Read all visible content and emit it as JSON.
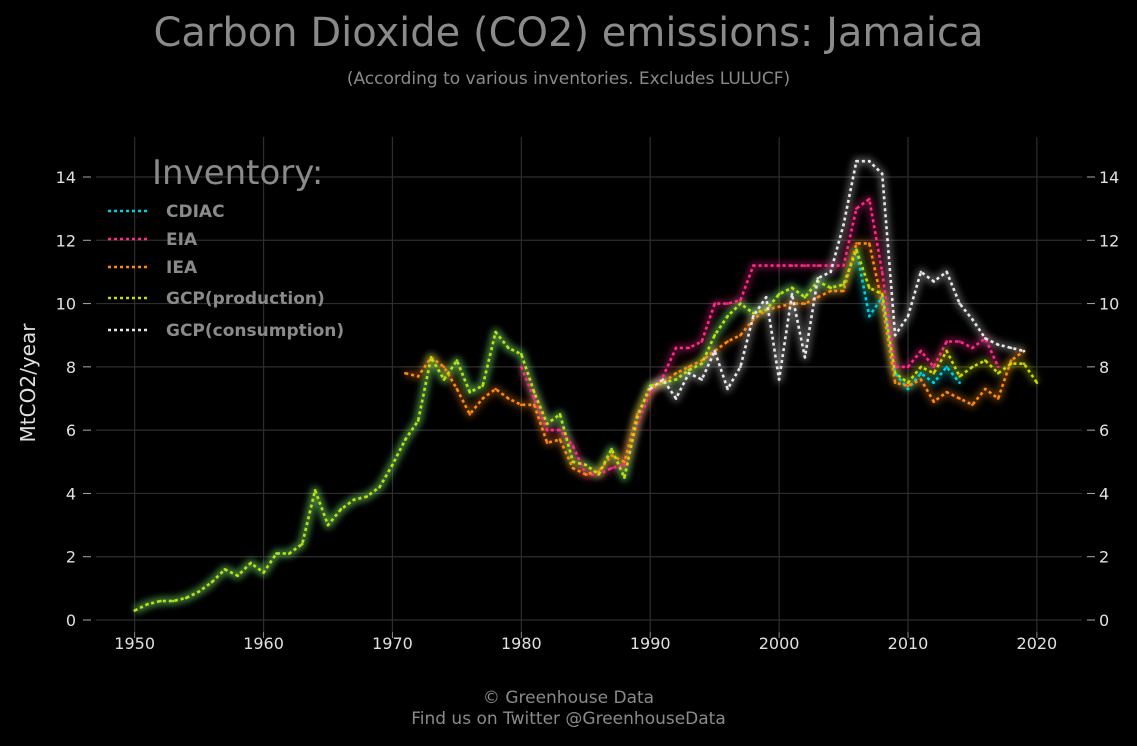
{
  "header": {
    "title": "Carbon Dioxide (CO2) emissions: Jamaica",
    "subtitle": "(According to various inventories. Excludes LULUCF)"
  },
  "footer": {
    "copyright": "© Greenhouse Data",
    "twitter": "Find us on Twitter @GreenhouseData"
  },
  "colors": {
    "background": "#000000",
    "grid": "#2e2e2e",
    "text": "#8a8a8a",
    "tick_text": "#e0e0e0"
  },
  "chart_data": {
    "type": "line",
    "title": "Carbon Dioxide (CO2) emissions: Jamaica",
    "subtitle": "(According to various inventories. Excludes LULUCF)",
    "xlabel": "",
    "ylabel": "MtCO2/year",
    "xlim": [
      1947,
      2023.5
    ],
    "ylim": [
      0,
      15.3
    ],
    "xticks": [
      1950,
      1960,
      1970,
      1980,
      1990,
      2000,
      2010,
      2020
    ],
    "yticks": [
      0,
      2,
      4,
      6,
      8,
      10,
      12,
      14
    ],
    "grid": true,
    "legend_title": "Inventory:",
    "legend_position": "top-left",
    "series": [
      {
        "name": "CDIAC",
        "color": "#00d0e0",
        "x": [
          1950,
          1951,
          1952,
          1953,
          1954,
          1955,
          1956,
          1957,
          1958,
          1959,
          1960,
          1961,
          1962,
          1963,
          1964,
          1965,
          1966,
          1967,
          1968,
          1969,
          1970,
          1971,
          1972,
          1973,
          1974,
          1975,
          1976,
          1977,
          1978,
          1979,
          1980,
          1981,
          1982,
          1983,
          1984,
          1985,
          1986,
          1987,
          1988,
          1989,
          1990,
          1991,
          1992,
          1993,
          1994,
          1995,
          1996,
          1997,
          1998,
          1999,
          2000,
          2001,
          2002,
          2003,
          2004,
          2005,
          2006,
          2007,
          2008,
          2009,
          2010,
          2011,
          2012,
          2013,
          2014
        ],
        "values": [
          0.3,
          0.5,
          0.6,
          0.6,
          0.7,
          0.9,
          1.2,
          1.6,
          1.4,
          1.8,
          1.5,
          2.1,
          2.1,
          2.4,
          4.1,
          3.0,
          3.5,
          3.8,
          3.9,
          4.2,
          4.9,
          5.7,
          6.3,
          8.3,
          7.6,
          8.2,
          7.2,
          7.4,
          9.1,
          8.6,
          8.4,
          7.2,
          6.2,
          6.5,
          5.0,
          4.9,
          4.6,
          5.4,
          4.5,
          6.4,
          7.4,
          7.5,
          7.6,
          7.9,
          8.1,
          9.0,
          9.6,
          10.0,
          9.7,
          9.8,
          10.3,
          10.5,
          10.2,
          10.7,
          10.5,
          10.6,
          11.7,
          9.6,
          10.2,
          7.8,
          7.3,
          7.8,
          7.5,
          8.0,
          7.5
        ]
      },
      {
        "name": "EIA",
        "color": "#ff2a8a",
        "x": [
          1980,
          1981,
          1982,
          1983,
          1984,
          1985,
          1986,
          1987,
          1988,
          1989,
          1990,
          1991,
          1992,
          1993,
          1994,
          1995,
          1996,
          1997,
          1998,
          1999,
          2000,
          2001,
          2002,
          2003,
          2004,
          2005,
          2006,
          2007,
          2008,
          2009,
          2010,
          2011,
          2012,
          2013,
          2014,
          2015,
          2016,
          2017
        ],
        "values": [
          8.0,
          7.0,
          6.0,
          6.0,
          5.5,
          4.6,
          4.6,
          4.8,
          4.9,
          6.2,
          7.2,
          7.7,
          8.6,
          8.6,
          8.8,
          10.0,
          10.0,
          10.1,
          11.2,
          11.2,
          11.2,
          11.2,
          11.2,
          11.2,
          11.2,
          11.2,
          13.0,
          13.3,
          11.0,
          8.0,
          8.0,
          8.5,
          8.0,
          8.8,
          8.8,
          8.6,
          8.9,
          8.0
        ]
      },
      {
        "name": "IEA",
        "color": "#ff8a10",
        "x": [
          1971,
          1972,
          1973,
          1974,
          1975,
          1976,
          1977,
          1978,
          1979,
          1980,
          1981,
          1982,
          1983,
          1984,
          1985,
          1986,
          1987,
          1988,
          1989,
          1990,
          1991,
          1992,
          1993,
          1994,
          1995,
          1996,
          1997,
          1998,
          1999,
          2000,
          2001,
          2002,
          2003,
          2004,
          2005,
          2006,
          2007,
          2008,
          2009,
          2010,
          2011,
          2012,
          2013,
          2014,
          2015,
          2016,
          2017,
          2018,
          2019
        ],
        "values": [
          7.8,
          7.7,
          8.3,
          8.0,
          7.3,
          6.5,
          7.0,
          7.3,
          7.0,
          6.8,
          6.8,
          5.6,
          5.7,
          4.8,
          4.6,
          4.7,
          5.2,
          5.0,
          6.5,
          7.3,
          7.5,
          7.8,
          8.0,
          8.2,
          8.5,
          8.8,
          9.0,
          9.5,
          9.8,
          9.9,
          10.0,
          10.0,
          10.2,
          10.4,
          10.4,
          11.9,
          11.9,
          10.0,
          7.5,
          7.4,
          7.6,
          6.9,
          7.2,
          7.0,
          6.8,
          7.3,
          7.0,
          8.2,
          8.5
        ]
      },
      {
        "name": "GCP(production)",
        "color": "#c8dc00",
        "x": [
          1950,
          1951,
          1952,
          1953,
          1954,
          1955,
          1956,
          1957,
          1958,
          1959,
          1960,
          1961,
          1962,
          1963,
          1964,
          1965,
          1966,
          1967,
          1968,
          1969,
          1970,
          1971,
          1972,
          1973,
          1974,
          1975,
          1976,
          1977,
          1978,
          1979,
          1980,
          1981,
          1982,
          1983,
          1984,
          1985,
          1986,
          1987,
          1988,
          1989,
          1990,
          1991,
          1992,
          1993,
          1994,
          1995,
          1996,
          1997,
          1998,
          1999,
          2000,
          2001,
          2002,
          2003,
          2004,
          2005,
          2006,
          2007,
          2008,
          2009,
          2010,
          2011,
          2012,
          2013,
          2014,
          2015,
          2016,
          2017,
          2018,
          2019,
          2020
        ],
        "values": [
          0.3,
          0.5,
          0.6,
          0.6,
          0.7,
          0.9,
          1.2,
          1.6,
          1.4,
          1.8,
          1.5,
          2.1,
          2.1,
          2.4,
          4.1,
          3.0,
          3.5,
          3.8,
          3.9,
          4.2,
          4.9,
          5.7,
          6.3,
          8.3,
          7.6,
          8.2,
          7.2,
          7.4,
          9.1,
          8.6,
          8.4,
          7.2,
          6.2,
          6.5,
          5.0,
          4.9,
          4.6,
          5.4,
          4.5,
          6.4,
          7.4,
          7.5,
          7.6,
          7.9,
          8.1,
          9.0,
          9.6,
          10.0,
          9.7,
          9.8,
          10.3,
          10.5,
          10.2,
          10.7,
          10.5,
          10.6,
          11.7,
          10.5,
          10.3,
          7.8,
          7.5,
          8.0,
          7.8,
          8.5,
          7.7,
          8.0,
          8.2,
          7.8,
          8.1,
          8.1,
          7.5
        ]
      },
      {
        "name": "GCP(consumption)",
        "color": "#e8e8e8",
        "x": [
          1990,
          1991,
          1992,
          1993,
          1994,
          1995,
          1996,
          1997,
          1998,
          1999,
          2000,
          2001,
          2002,
          2003,
          2004,
          2005,
          2006,
          2007,
          2008,
          2009,
          2010,
          2011,
          2012,
          2013,
          2014,
          2015,
          2016,
          2017,
          2018,
          2019
        ],
        "values": [
          7.3,
          7.6,
          7.0,
          7.8,
          7.6,
          8.5,
          7.3,
          8.0,
          9.6,
          10.2,
          7.6,
          10.3,
          8.3,
          10.8,
          11.0,
          12.5,
          14.5,
          14.5,
          14.1,
          9.0,
          9.6,
          11.0,
          10.7,
          11.0,
          10.0,
          9.5,
          8.9,
          8.7,
          8.6,
          8.5
        ]
      }
    ]
  }
}
